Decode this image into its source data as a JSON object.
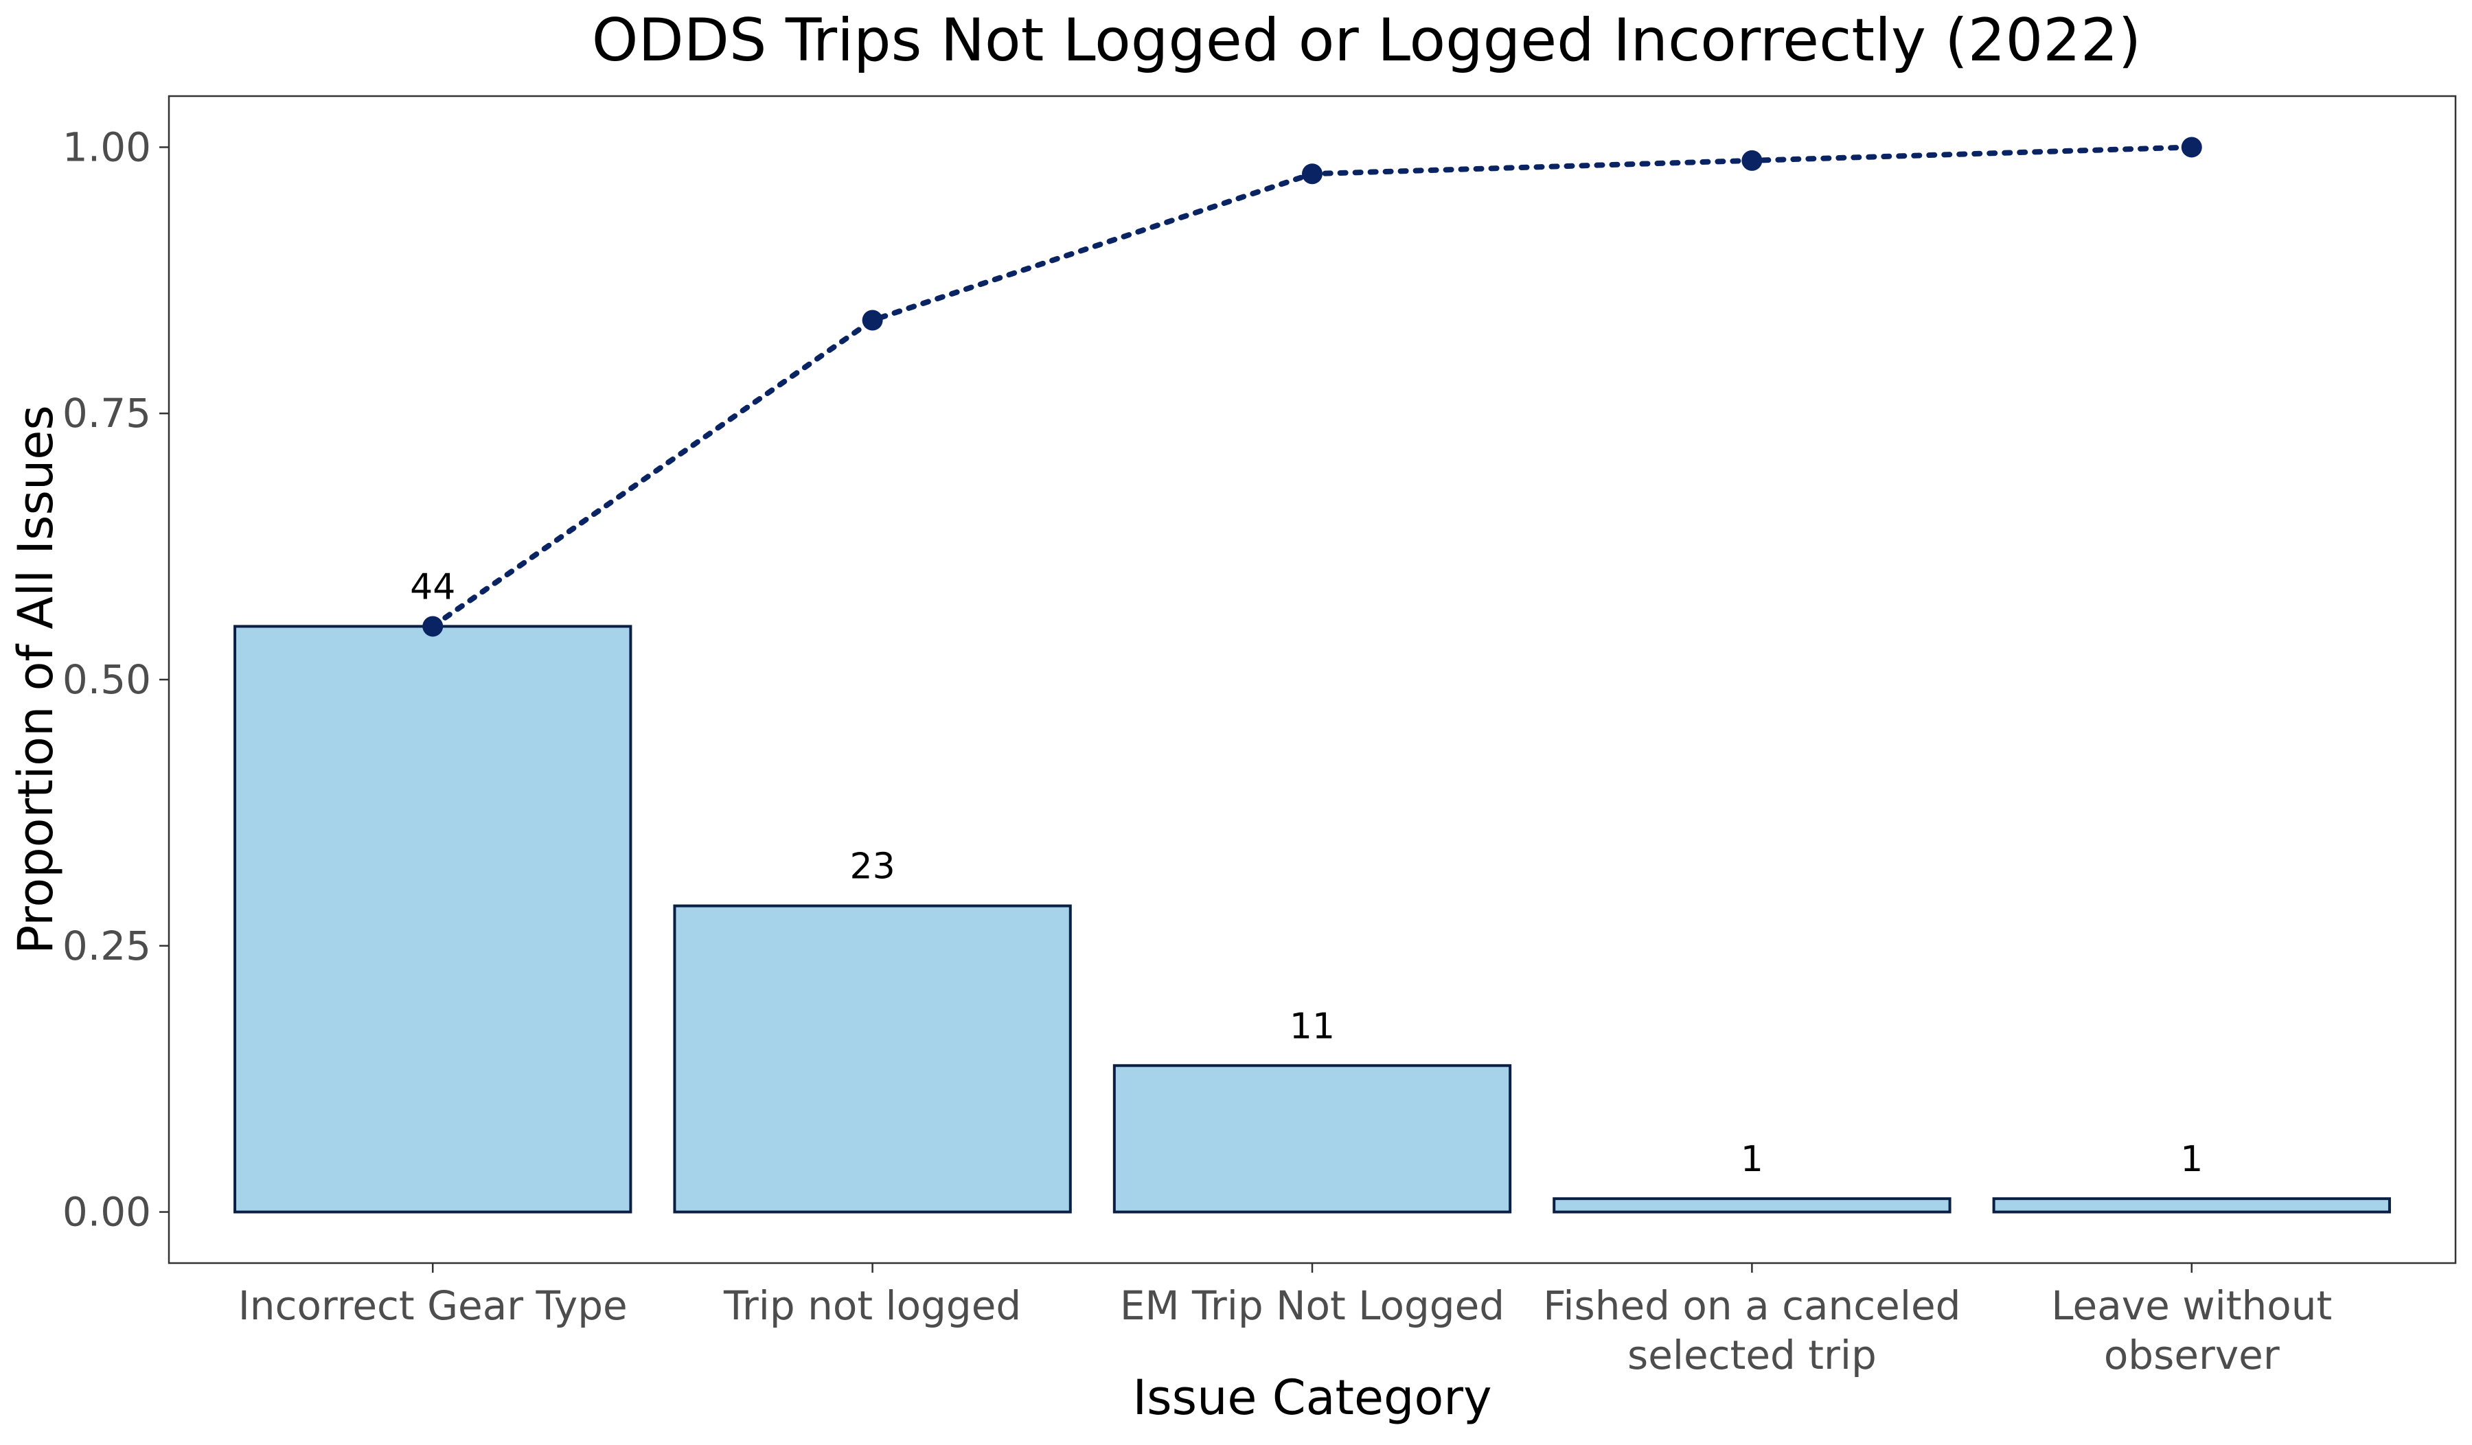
{
  "chart_data": {
    "type": "bar",
    "title": "ODDS Trips Not Logged or Logged Incorrectly (2022)",
    "xlabel": "Issue Category",
    "ylabel": "Proportion of All Issues",
    "ylim": [
      -0.048,
      1.048
    ],
    "yticks": [
      "0.00",
      "0.25",
      "0.50",
      "0.75",
      "1.00"
    ],
    "grid": false,
    "categories": [
      [
        "Incorrect Gear Type"
      ],
      [
        "Trip not logged"
      ],
      [
        "EM Trip Not Logged"
      ],
      [
        "Fished on a canceled",
        "selected trip"
      ],
      [
        "Leave without",
        "observer"
      ]
    ],
    "series": [
      {
        "type": "bar",
        "values": [
          0.55,
          0.2875,
          0.1375,
          0.0125,
          0.0125
        ],
        "labels": [
          "44",
          "23",
          "11",
          "1",
          "1"
        ],
        "color": "#a6d3ea",
        "edge_color": "#0a1f44"
      },
      {
        "type": "line",
        "style": "dotted",
        "values": [
          0.55,
          0.8375,
          0.975,
          0.9875,
          1.0
        ],
        "color": "#0a2463"
      }
    ]
  }
}
